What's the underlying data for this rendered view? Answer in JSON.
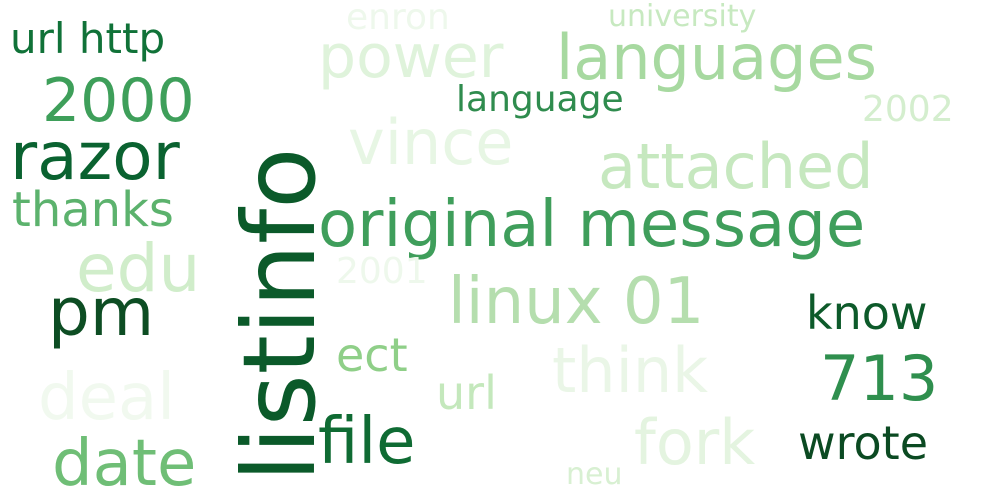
{
  "words": [
    {
      "text": "listinfo",
      "color": "#0b5a2a",
      "orientation": "vertical"
    },
    {
      "text": "original message",
      "color": "#3f9e5b",
      "orientation": "horizontal"
    },
    {
      "text": "razor",
      "color": "#0a6230",
      "orientation": "horizontal"
    },
    {
      "text": "languages",
      "color": "#a7d9a0",
      "orientation": "horizontal"
    },
    {
      "text": "power",
      "color": "#dff3db",
      "orientation": "horizontal"
    },
    {
      "text": "2000",
      "color": "#3e9f5a",
      "orientation": "horizontal"
    },
    {
      "text": "url http",
      "color": "#107238",
      "orientation": "horizontal"
    },
    {
      "text": "enron",
      "color": "#eef8ec",
      "orientation": "horizontal"
    },
    {
      "text": "university",
      "color": "#c7e9c0",
      "orientation": "horizontal"
    },
    {
      "text": "language",
      "color": "#2f8c4e",
      "orientation": "horizontal"
    },
    {
      "text": "2002",
      "color": "#d4eece",
      "orientation": "horizontal"
    },
    {
      "text": "vince",
      "color": "#e7f6e4",
      "orientation": "horizontal"
    },
    {
      "text": "attached",
      "color": "#c6e8bf",
      "orientation": "horizontal"
    },
    {
      "text": "thanks",
      "color": "#5cb26d",
      "orientation": "horizontal"
    },
    {
      "text": "edu",
      "color": "#d0edca",
      "orientation": "horizontal"
    },
    {
      "text": "2001",
      "color": "#eef8ec",
      "orientation": "horizontal"
    },
    {
      "text": "linux 01",
      "color": "#b5deae",
      "orientation": "horizontal"
    },
    {
      "text": "pm",
      "color": "#0d4d23",
      "orientation": "horizontal"
    },
    {
      "text": "know",
      "color": "#0d5a2a",
      "orientation": "horizontal"
    },
    {
      "text": "ect",
      "color": "#8fcf88",
      "orientation": "horizontal"
    },
    {
      "text": "think",
      "color": "#eaf6e7",
      "orientation": "horizontal"
    },
    {
      "text": "713",
      "color": "#2f8f4e",
      "orientation": "horizontal"
    },
    {
      "text": "deal",
      "color": "#f1f9ef",
      "orientation": "horizontal"
    },
    {
      "text": "url",
      "color": "#c4e8bc",
      "orientation": "horizontal"
    },
    {
      "text": "file",
      "color": "#0f6b33",
      "orientation": "horizontal"
    },
    {
      "text": "fork",
      "color": "#e4f4e0",
      "orientation": "horizontal"
    },
    {
      "text": "wrote",
      "color": "#0b4a22",
      "orientation": "horizontal"
    },
    {
      "text": "date",
      "color": "#6fbe76",
      "orientation": "horizontal"
    },
    {
      "text": "neu",
      "color": "#d8f0d2",
      "orientation": "horizontal"
    }
  ]
}
